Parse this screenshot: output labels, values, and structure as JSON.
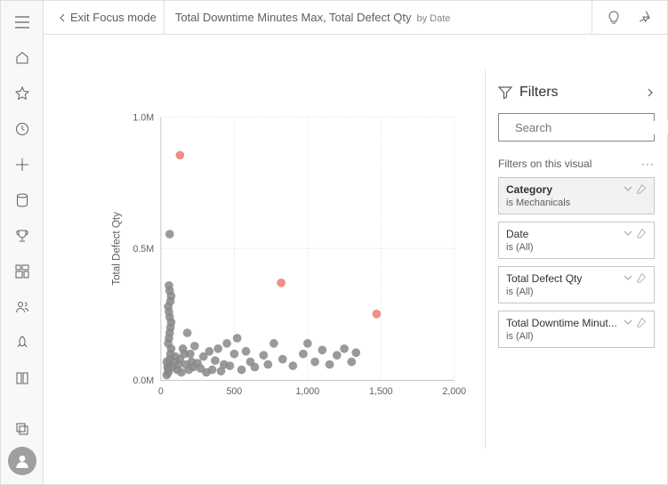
{
  "topbar": {
    "exit_label": "Exit Focus mode",
    "title_main": "Total Downtime Minutes Max, Total Defect Qty",
    "title_sub": "by Date"
  },
  "filters": {
    "panel_title": "Filters",
    "search_placeholder": "Search",
    "section_label": "Filters on this visual",
    "cards": [
      {
        "title": "Category",
        "value": "is Mechanicals",
        "active": true
      },
      {
        "title": "Date",
        "value": "is (All)",
        "active": false
      },
      {
        "title": "Total Defect Qty",
        "value": "is (All)",
        "active": false
      },
      {
        "title": "Total Downtime Minut...",
        "value": "is (All)",
        "active": false
      }
    ]
  },
  "chart": {
    "type": "scatter",
    "y_label": "Total Defect Qty",
    "xlim": [
      0,
      2000
    ],
    "ylim": [
      0,
      1000000
    ],
    "x_ticks": [
      0,
      500,
      1000,
      1500,
      2000
    ],
    "x_tick_labels": [
      "0",
      "500",
      "1,000",
      "1,500",
      "2,000"
    ],
    "y_ticks": [
      0,
      500000,
      1000000
    ],
    "y_tick_labels": [
      "0.0M",
      "0.5M",
      "1.0M"
    ],
    "point_radius": 5,
    "gray_color": "#8a8886",
    "highlight_color": "#f28e82",
    "grid_color": "#e8e8e8",
    "axis_color": "#c8c6c4",
    "background_color": "#ffffff",
    "label_fontsize": 12,
    "tick_fontsize": 11,
    "gray_points": [
      [
        40,
        20000
      ],
      [
        50,
        40000
      ],
      [
        55,
        60000
      ],
      [
        60,
        80000
      ],
      [
        65,
        100000
      ],
      [
        70,
        120000
      ],
      [
        50,
        140000
      ],
      [
        55,
        160000
      ],
      [
        60,
        180000
      ],
      [
        65,
        200000
      ],
      [
        70,
        220000
      ],
      [
        60,
        240000
      ],
      [
        55,
        260000
      ],
      [
        50,
        280000
      ],
      [
        65,
        300000
      ],
      [
        70,
        320000
      ],
      [
        60,
        340000
      ],
      [
        55,
        360000
      ],
      [
        50,
        30000
      ],
      [
        45,
        50000
      ],
      [
        40,
        70000
      ],
      [
        60,
        555000
      ],
      [
        80,
        50000
      ],
      [
        90,
        70000
      ],
      [
        100,
        90000
      ],
      [
        110,
        40000
      ],
      [
        120,
        60000
      ],
      [
        130,
        80000
      ],
      [
        140,
        30000
      ],
      [
        150,
        120000
      ],
      [
        160,
        100000
      ],
      [
        170,
        60000
      ],
      [
        180,
        180000
      ],
      [
        190,
        40000
      ],
      [
        200,
        100000
      ],
      [
        210,
        70000
      ],
      [
        220,
        50000
      ],
      [
        230,
        130000
      ],
      [
        250,
        65000
      ],
      [
        270,
        45000
      ],
      [
        290,
        90000
      ],
      [
        310,
        30000
      ],
      [
        330,
        110000
      ],
      [
        350,
        40000
      ],
      [
        370,
        75000
      ],
      [
        390,
        120000
      ],
      [
        410,
        35000
      ],
      [
        430,
        60000
      ],
      [
        450,
        140000
      ],
      [
        470,
        55000
      ],
      [
        500,
        100000
      ],
      [
        520,
        160000
      ],
      [
        550,
        40000
      ],
      [
        580,
        110000
      ],
      [
        610,
        70000
      ],
      [
        640,
        50000
      ],
      [
        700,
        95000
      ],
      [
        730,
        60000
      ],
      [
        770,
        140000
      ],
      [
        830,
        80000
      ],
      [
        900,
        55000
      ],
      [
        970,
        100000
      ],
      [
        1000,
        140000
      ],
      [
        1050,
        70000
      ],
      [
        1100,
        115000
      ],
      [
        1150,
        60000
      ],
      [
        1200,
        95000
      ],
      [
        1250,
        120000
      ],
      [
        1300,
        70000
      ],
      [
        1330,
        105000
      ]
    ],
    "highlight_points": [
      [
        130,
        855000
      ],
      [
        820,
        370000
      ],
      [
        1470,
        252000
      ]
    ]
  }
}
